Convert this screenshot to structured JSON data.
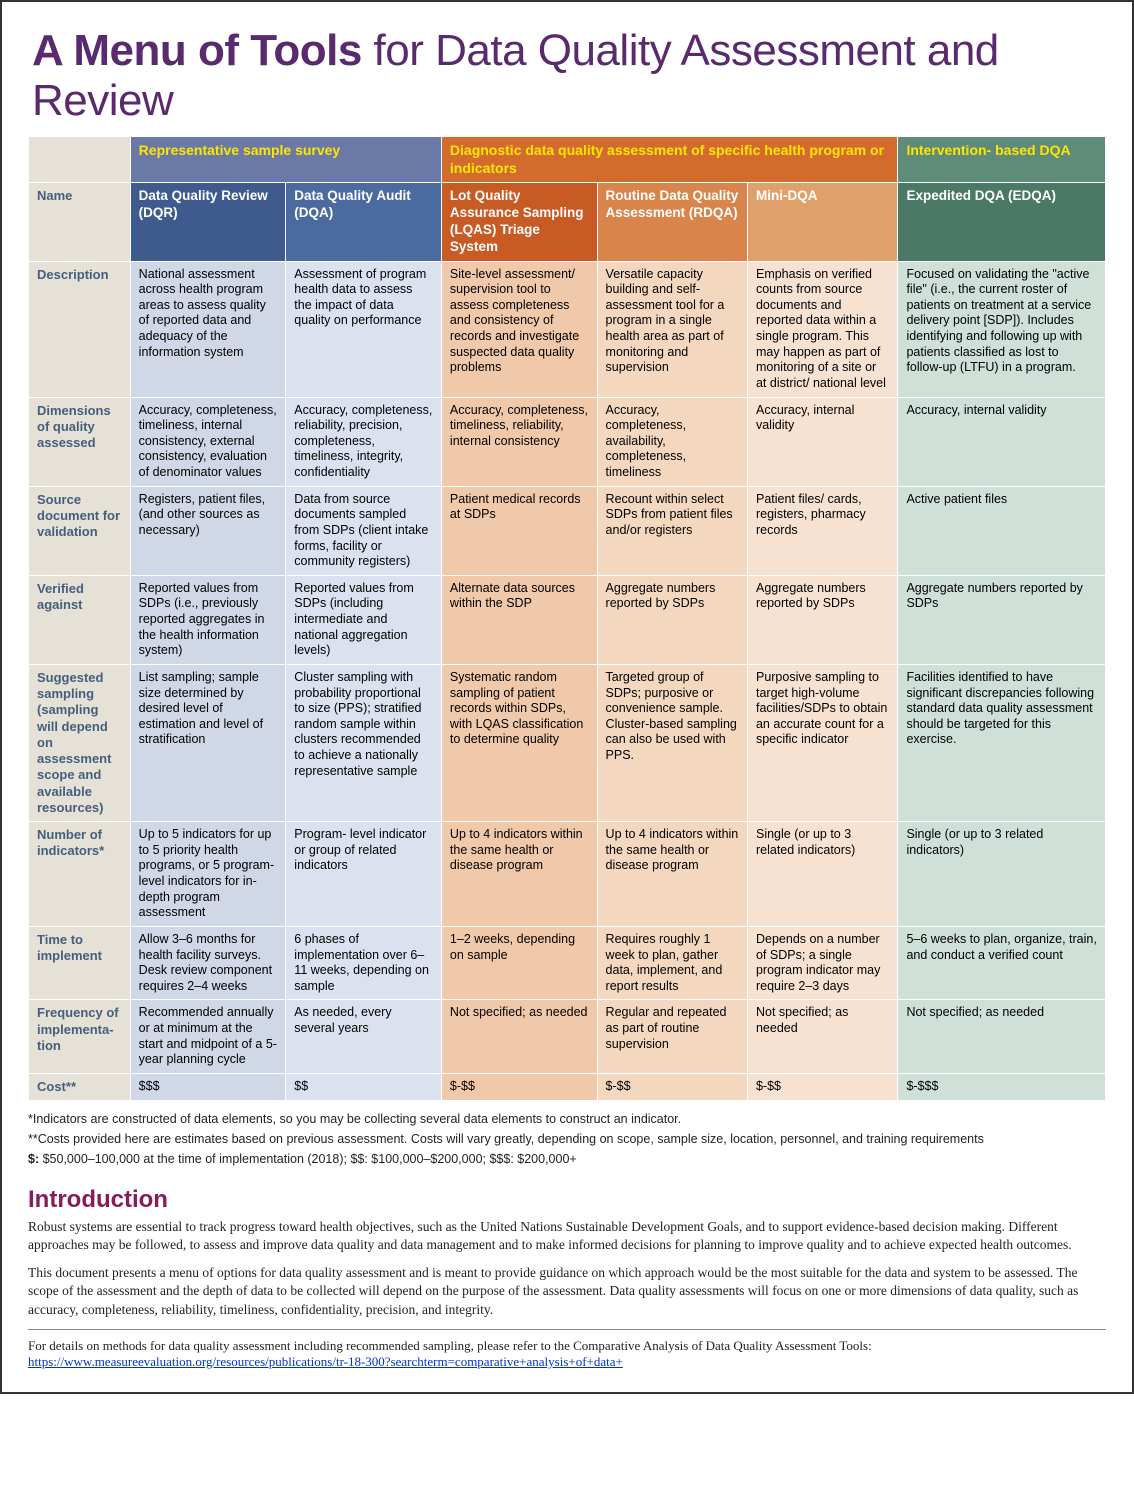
{
  "title_bold": "A Menu of Tools",
  "title_light": " for Data Quality Assessment and Review",
  "colors": {
    "cat_a": "#6b79a6",
    "cat_b": "#d36b2f",
    "cat_c": "#5e8b7a",
    "tool_a1": "#3f5a8c",
    "tool_a2": "#4b6ba0",
    "tool_b1": "#c85a24",
    "tool_b2": "#d9844a",
    "tool_b3": "#e0a06a",
    "tool_c1": "#4a7966",
    "body_a1": "#d0d7e6",
    "body_a2": "#dbe1ee",
    "body_b1": "#f0c9ab",
    "body_b2": "#f4d7bf",
    "body_b3": "#f7e2d1",
    "body_c1": "#cfe0d8",
    "rowlabel_bg": "#e6e1d6"
  },
  "col_widths": [
    "98px",
    "150px",
    "150px",
    "150px",
    "145px",
    "145px",
    "200px"
  ],
  "categories": [
    {
      "label": "Representative sample survey",
      "span": 2,
      "color": "cat_a"
    },
    {
      "label": "Diagnostic data quality assessment of specific health program or indicators",
      "span": 3,
      "color": "cat_b"
    },
    {
      "label": "Intervention- based DQA",
      "span": 1,
      "color": "cat_c"
    }
  ],
  "tools": [
    {
      "name": "Data Quality Review (DQR)",
      "hcolor": "tool_a1",
      "bcolor": "body_a1"
    },
    {
      "name": "Data Quality Audit (DQA)",
      "hcolor": "tool_a2",
      "bcolor": "body_a2"
    },
    {
      "name": "Lot Quality Assurance Sampling (LQAS) Triage System",
      "hcolor": "tool_b1",
      "bcolor": "body_b1"
    },
    {
      "name": "Routine Data Quality Assessment (RDQA)",
      "hcolor": "tool_b2",
      "bcolor": "body_b2"
    },
    {
      "name": "Mini-DQA",
      "hcolor": "tool_b3",
      "bcolor": "body_b3"
    },
    {
      "name": "Expedited DQA (EDQA)",
      "hcolor": "tool_c1",
      "bcolor": "body_c1"
    }
  ],
  "row_labels": [
    "Name",
    "Description",
    "Dimensions of quality assessed",
    "Source document for validation",
    "Verified against",
    "Suggested sampling (sampling will depend on assessment scope and available resources)",
    "Number of indicators*",
    "Time to implement",
    "Frequency of implementa-tion",
    "Cost**"
  ],
  "rows": [
    [
      "National assessment across health program areas to assess quality of reported data and adequacy of the information system",
      "Assessment of program health data to assess the impact of data quality on performance",
      "Site-level assessment/ supervision tool to assess completeness and consistency of records and investigate suspected data quality problems",
      "Versatile capacity building and self-assessment tool for a program in a single health area as part of monitoring and supervision",
      "Emphasis on verified counts from source documents and reported data within a single program. This may happen as part of monitoring of a site or at district/ national level",
      "Focused on validating the \"active file\" (i.e., the current roster of patients on treatment at a service delivery point [SDP]). Includes identifying and following up with patients classified as lost to follow-up (LTFU) in a program."
    ],
    [
      "Accuracy, completeness, timeliness, internal consistency, external consistency, evaluation of denominator values",
      "Accuracy, completeness, reliability, precision, completeness, timeliness, integrity, confidentiality",
      "Accuracy, completeness, timeliness, reliability, internal consistency",
      "Accuracy, completeness, availability, completeness, timeliness",
      "Accuracy, internal validity",
      "Accuracy, internal validity"
    ],
    [
      "Registers, patient files, (and other sources as necessary)",
      "Data from source documents sampled from SDPs (client intake forms, facility or community registers)",
      "Patient medical records at SDPs",
      "Recount within select SDPs from patient files and/or registers",
      "Patient files/ cards, registers, pharmacy records",
      "Active patient files"
    ],
    [
      "Reported values from SDPs (i.e., previously reported aggregates in the health information system)",
      "Reported values from SDPs (including intermediate and national aggregation levels)",
      "Alternate data sources within the SDP",
      "Aggregate numbers reported by SDPs",
      "Aggregate numbers reported by SDPs",
      "Aggregate numbers reported by SDPs"
    ],
    [
      "List sampling; sample size determined by desired level of estimation and level of stratification",
      "Cluster sampling with probability proportional to size (PPS); stratified random sample within clusters recommended to achieve a nationally representative sample",
      "Systematic random sampling of patient records within SDPs, with LQAS classification to determine quality",
      "Targeted group of SDPs; purposive or convenience sample. Cluster-based sampling can also be used with PPS.",
      "Purposive sampling to target high-volume facilities/SDPs to obtain an accurate count for a specific indicator",
      "Facilities identified to have significant discrepancies following standard data quality assessment should be targeted for this exercise."
    ],
    [
      "Up to 5 indicators for up to 5 priority health programs, or 5 program-level indicators for in-depth program assessment",
      "Program- level indicator or group of related indicators",
      "Up to 4 indicators within the same health or disease program",
      "Up to 4 indicators within the same health or disease program",
      "Single (or up to 3 related indicators)",
      "Single (or up to 3 related indicators)"
    ],
    [
      "Allow 3–6 months for health facility surveys. Desk review component requires 2–4 weeks",
      "6 phases of implementation over 6–11 weeks, depending on sample",
      "1–2 weeks, depending on sample",
      "Requires roughly 1 week to plan, gather data, implement, and report results",
      "Depends on a number of SDPs; a single program indicator may require 2–3 days",
      "5–6 weeks to plan, organize, train, and conduct a verified count"
    ],
    [
      "Recommended annually or at minimum at the start and midpoint of a 5-year planning cycle",
      "As needed, every several years",
      "Not specified; as needed",
      "Regular and repeated as part of routine supervision",
      "Not specified; as needed",
      "Not specified; as needed"
    ],
    [
      "$$$",
      "$$",
      "$-$$",
      "$-$$",
      "$-$$",
      "$-$$$"
    ]
  ],
  "notes": {
    "n1": "*Indicators are constructed of data elements, so you may be collecting several data elements to construct an indicator.",
    "n2": "**Costs provided here are estimates based on previous assessment. Costs will vary greatly, depending on scope, sample size, location, personnel, and training requirements",
    "n3_prefix": "$:",
    "n3_rest": " $50,000–100,000 at the time of implementation (2018); $$: $100,000–$200,000; $$$: $200,000+"
  },
  "intro_heading": "Introduction",
  "intro_p1": "Robust systems are essential to track progress toward health objectives, such as the United Nations Sustainable Development Goals, and to support evidence-based decision making. Different approaches may be followed, to assess and improve data quality and data management and to make informed decisions for planning to improve quality and to achieve expected health outcomes.",
  "intro_p2": "This document presents a menu of options for data quality assessment and is meant to provide guidance on which approach would be the most suitable for the data and system to be assessed. The scope of the assessment and the depth of data to be collected will depend on the purpose of the assessment. Data quality assessments will focus on one or more dimensions of data quality, such as accuracy, completeness, reliability, timeliness, confidentiality, precision, and integrity.",
  "footer_text": "For details on methods for data quality assessment including recommended sampling, please refer to the Comparative Analysis of Data Quality Assessment Tools: ",
  "footer_link": "https://www.measureevaluation.org/resources/publications/tr-18-300?searchterm=comparative+analysis+of+data+"
}
